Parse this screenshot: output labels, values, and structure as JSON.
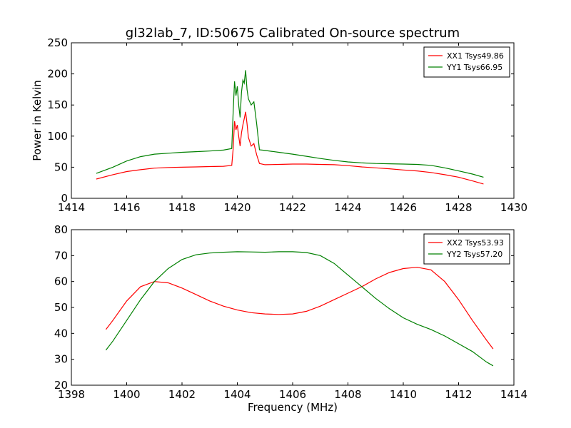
{
  "figure": {
    "title": "gl32lab_7, ID:50675 Calibrated On-source spectrum"
  },
  "chart_data": [
    {
      "type": "line",
      "title": "gl32lab_7, ID:50675 Calibrated On-source spectrum",
      "xlabel": "",
      "ylabel": "Power in Kelvin",
      "xlim": [
        1414,
        1430
      ],
      "ylim": [
        0,
        250
      ],
      "xticks": [
        1414,
        1416,
        1418,
        1420,
        1422,
        1424,
        1426,
        1428,
        1430
      ],
      "yticks": [
        0,
        50,
        100,
        150,
        200,
        250
      ],
      "grid": false,
      "legend_position": "top-right",
      "series": [
        {
          "name": "XX1 Tsys49.86",
          "color": "#ff0000",
          "x": [
            1414.9,
            1415.5,
            1416.0,
            1416.5,
            1417.0,
            1417.5,
            1418.0,
            1418.5,
            1419.0,
            1419.5,
            1419.8,
            1419.85,
            1419.9,
            1419.95,
            1420.0,
            1420.05,
            1420.1,
            1420.15,
            1420.2,
            1420.25,
            1420.3,
            1420.35,
            1420.4,
            1420.5,
            1420.6,
            1420.7,
            1420.8,
            1421.0,
            1421.5,
            1422.0,
            1422.5,
            1423.0,
            1423.5,
            1424.0,
            1424.5,
            1425.0,
            1425.5,
            1426.0,
            1426.5,
            1427.0,
            1427.5,
            1428.0,
            1428.5,
            1428.9
          ],
          "y": [
            31,
            38,
            43,
            46,
            48.5,
            49.5,
            50,
            50.5,
            51,
            51.5,
            53,
            80,
            124,
            110,
            118,
            100,
            84,
            105,
            118,
            128,
            139,
            120,
            98,
            84,
            88,
            70,
            56,
            54,
            54.5,
            55,
            55,
            54.5,
            54,
            52.5,
            50.5,
            49,
            47.5,
            45.5,
            44,
            41.5,
            38,
            34,
            28,
            23
          ]
        },
        {
          "name": "YY1 Tsys66.95",
          "color": "#008000",
          "x": [
            1414.9,
            1415.5,
            1416.0,
            1416.5,
            1417.0,
            1417.5,
            1418.0,
            1418.5,
            1419.0,
            1419.5,
            1419.8,
            1419.85,
            1419.9,
            1419.95,
            1420.0,
            1420.05,
            1420.1,
            1420.15,
            1420.2,
            1420.25,
            1420.3,
            1420.35,
            1420.4,
            1420.5,
            1420.6,
            1420.7,
            1420.8,
            1421.0,
            1421.5,
            1422.0,
            1422.5,
            1423.0,
            1423.5,
            1424.0,
            1424.5,
            1425.0,
            1425.5,
            1426.0,
            1426.5,
            1427.0,
            1427.5,
            1428.0,
            1428.5,
            1428.9
          ],
          "y": [
            40,
            50,
            60,
            67,
            71,
            72.5,
            74,
            75,
            76,
            77.5,
            80,
            140,
            188,
            165,
            180,
            150,
            130,
            170,
            190,
            185,
            206,
            175,
            160,
            150,
            155,
            120,
            78,
            77,
            74,
            71,
            67.5,
            64,
            61,
            58.5,
            57,
            56,
            55.5,
            55,
            54.5,
            53,
            49,
            44,
            39,
            34
          ]
        }
      ]
    },
    {
      "type": "line",
      "title": "",
      "xlabel": "Frequency (MHz)",
      "ylabel": "",
      "xlim": [
        1398,
        1414
      ],
      "ylim": [
        20,
        80
      ],
      "xticks": [
        1398,
        1400,
        1402,
        1404,
        1406,
        1408,
        1410,
        1412,
        1414
      ],
      "yticks": [
        20,
        30,
        40,
        50,
        60,
        70,
        80
      ],
      "grid": false,
      "legend_position": "top-right",
      "series": [
        {
          "name": "XX2 Tsys53.93",
          "color": "#ff0000",
          "x": [
            1399.25,
            1399.5,
            1400.0,
            1400.5,
            1401.0,
            1401.5,
            1402.0,
            1402.5,
            1403.0,
            1403.5,
            1404.0,
            1404.5,
            1405.0,
            1405.5,
            1406.0,
            1406.5,
            1407.0,
            1407.5,
            1408.0,
            1408.5,
            1409.0,
            1409.5,
            1410.0,
            1410.5,
            1411.0,
            1411.5,
            1412.0,
            1412.5,
            1413.0,
            1413.25
          ],
          "y": [
            41.5,
            45,
            52.5,
            58,
            60,
            59.5,
            57.5,
            55,
            52.5,
            50.5,
            49,
            48,
            47.5,
            47.3,
            47.5,
            48.5,
            50.5,
            53,
            55.5,
            58,
            61,
            63.5,
            65,
            65.5,
            64.5,
            60,
            53,
            45,
            37.5,
            34
          ]
        },
        {
          "name": "YY2 Tsys57.20",
          "color": "#008000",
          "x": [
            1399.25,
            1399.5,
            1400.0,
            1400.5,
            1401.0,
            1401.5,
            1402.0,
            1402.5,
            1403.0,
            1403.5,
            1404.0,
            1404.5,
            1405.0,
            1405.5,
            1406.0,
            1406.5,
            1407.0,
            1407.5,
            1408.0,
            1408.5,
            1409.0,
            1409.5,
            1410.0,
            1410.5,
            1411.0,
            1411.5,
            1412.0,
            1412.5,
            1413.0,
            1413.25
          ],
          "y": [
            33.5,
            37,
            45,
            53,
            60,
            65,
            68.5,
            70.3,
            71,
            71.3,
            71.5,
            71.4,
            71.3,
            71.5,
            71.5,
            71.2,
            70,
            67,
            62.5,
            58,
            53.5,
            49.5,
            46,
            43.5,
            41.5,
            39,
            36,
            33,
            29,
            27.5
          ]
        }
      ]
    }
  ]
}
